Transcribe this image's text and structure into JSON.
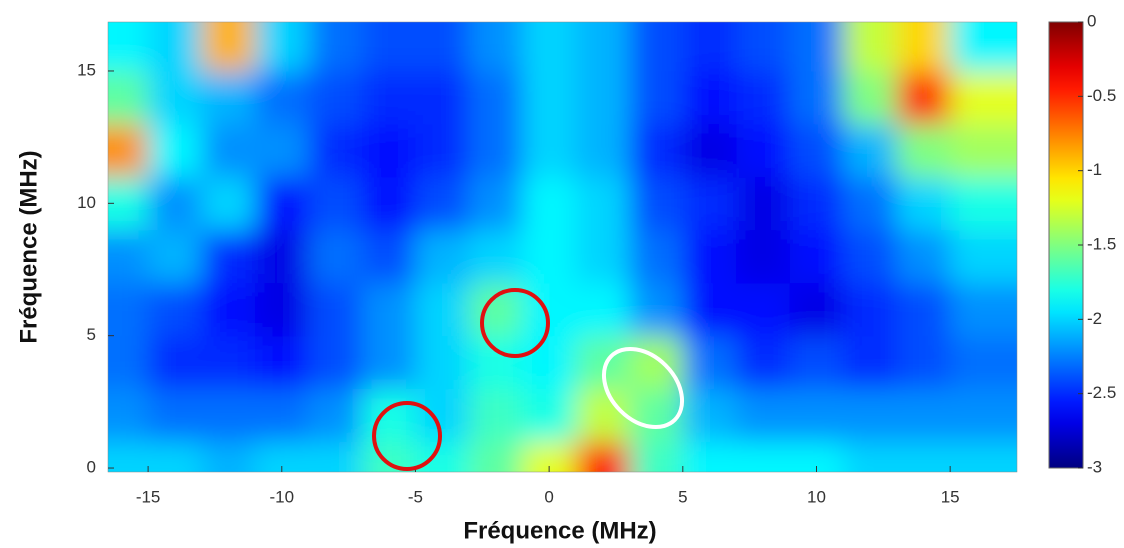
{
  "chart_data": {
    "type": "heatmap",
    "x_label": "Fréquence (MHz)",
    "y_label": "Fréquence (MHz)",
    "x": [
      -16,
      -14,
      -12,
      -10,
      -8,
      -6,
      -4,
      -2,
      0,
      2,
      4,
      6,
      8,
      10,
      12,
      14,
      16
    ],
    "y": [
      0,
      2,
      4,
      6,
      8,
      10,
      12,
      14,
      16
    ],
    "z": [
      [
        -2.0,
        -2.0,
        -2.1,
        -2.0,
        -2.0,
        -1.7,
        -1.8,
        -1.6,
        -1.2,
        -0.4,
        -1.7,
        -1.9,
        -1.9,
        -1.9,
        -2.0,
        -2.0,
        -2.0
      ],
      [
        -2.2,
        -2.3,
        -2.3,
        -2.3,
        -2.2,
        -1.8,
        -2.0,
        -1.7,
        -1.8,
        -1.3,
        -1.6,
        -2.1,
        -2.2,
        -2.2,
        -2.2,
        -2.2,
        -2.2
      ],
      [
        -2.3,
        -2.5,
        -2.5,
        -2.6,
        -2.4,
        -2.2,
        -2.0,
        -1.8,
        -1.9,
        -1.6,
        -1.4,
        -2.3,
        -2.5,
        -2.4,
        -2.5,
        -2.4,
        -2.3
      ],
      [
        -2.3,
        -2.4,
        -2.6,
        -2.7,
        -2.4,
        -2.2,
        -2.0,
        -1.6,
        -1.9,
        -1.9,
        -2.2,
        -2.6,
        -2.6,
        -2.7,
        -2.5,
        -2.4,
        -2.2
      ],
      [
        -2.2,
        -2.1,
        -2.5,
        -2.7,
        -2.3,
        -2.4,
        -2.1,
        -2.0,
        -1.9,
        -2.0,
        -2.3,
        -2.6,
        -2.7,
        -2.6,
        -2.4,
        -2.2,
        -2.0
      ],
      [
        -1.8,
        -2.2,
        -2.0,
        -2.6,
        -2.4,
        -2.6,
        -2.4,
        -2.2,
        -1.9,
        -2.0,
        -2.4,
        -2.5,
        -2.7,
        -2.5,
        -2.3,
        -2.0,
        -1.8
      ],
      [
        -0.8,
        -1.9,
        -2.2,
        -2.2,
        -2.5,
        -2.6,
        -2.5,
        -2.3,
        -2.0,
        -2.1,
        -2.5,
        -2.7,
        -2.6,
        -2.4,
        -2.1,
        -1.5,
        -1.4
      ],
      [
        -1.6,
        -2.0,
        -2.1,
        -2.3,
        -2.4,
        -2.5,
        -2.5,
        -2.3,
        -2.0,
        -2.1,
        -2.4,
        -2.6,
        -2.5,
        -2.3,
        -1.5,
        -0.5,
        -1.2
      ],
      [
        -1.9,
        -2.0,
        -0.9,
        -2.0,
        -2.3,
        -2.4,
        -2.4,
        -2.2,
        -2.0,
        -2.1,
        -2.4,
        -2.5,
        -2.4,
        -2.3,
        -1.3,
        -1.0,
        -1.9
      ]
    ],
    "xlim": [
      -16.5,
      17.5
    ],
    "ylim": [
      -0.15,
      16.85
    ],
    "xticks": [
      -15,
      -10,
      -5,
      0,
      5,
      10,
      15
    ],
    "yticks": [
      0,
      5,
      10,
      15
    ],
    "colormap": "jet",
    "clim": [
      -3,
      0
    ],
    "cticks": [
      0,
      -0.5,
      -1,
      -1.5,
      -2,
      -2.5,
      -3
    ]
  }
}
